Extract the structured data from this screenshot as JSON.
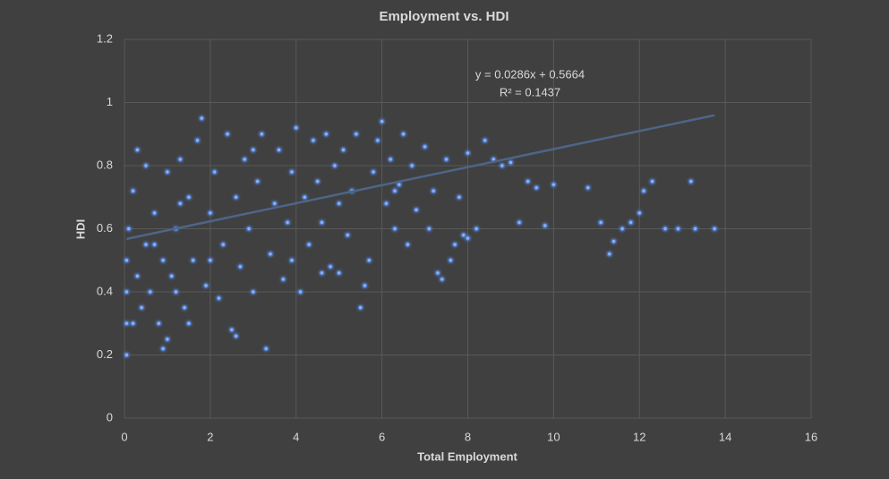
{
  "chart_data": {
    "type": "scatter",
    "title": "Employment vs. HDI",
    "x_label": "Total Employment",
    "y_label": "HDI",
    "xlim": [
      0,
      16
    ],
    "xticks": [
      0,
      2,
      4,
      6,
      8,
      10,
      12,
      14,
      16
    ],
    "ylim": [
      0,
      1.2
    ],
    "yticks": [
      0,
      0.2,
      0.4,
      0.6,
      0.8,
      1,
      1.2
    ],
    "grid": true,
    "color": "#8eb1f0",
    "edge_color": "#4472c4",
    "trendline": {
      "slope": 0.0286,
      "intercept": 0.5664,
      "color": "#4d6588"
    },
    "annotations": [
      "y = 0.0286x + 0.5664",
      "R² = 0.1437"
    ],
    "x": [
      0.05,
      0.05,
      0.05,
      0.05,
      0.1,
      0.2,
      0.3,
      0.3,
      0.4,
      0.5,
      0.5,
      0.6,
      0.7,
      0.8,
      0.9,
      0.9,
      1.0,
      1.1,
      1.2,
      1.3,
      1.4,
      1.5,
      1.6,
      1.7,
      1.8,
      1.9,
      2.0,
      2.1,
      2.2,
      2.3,
      2.4,
      2.5,
      2.6,
      2.7,
      2.8,
      2.9,
      3.0,
      3.1,
      3.2,
      3.3,
      3.4,
      3.5,
      3.6,
      3.7,
      3.8,
      3.9,
      4.0,
      4.1,
      4.2,
      4.3,
      4.4,
      4.5,
      4.6,
      4.7,
      4.8,
      4.9,
      5.0,
      5.1,
      5.2,
      5.3,
      5.4,
      5.5,
      5.6,
      5.7,
      5.8,
      5.9,
      6.0,
      6.1,
      6.2,
      6.3,
      6.4,
      6.5,
      6.6,
      6.7,
      6.8,
      7.0,
      7.1,
      7.2,
      7.3,
      7.4,
      7.5,
      7.6,
      7.7,
      7.8,
      7.9,
      8.0,
      8.2,
      8.4,
      8.6,
      8.8,
      9.0,
      9.2,
      9.4,
      9.6,
      9.8,
      10.0,
      10.8,
      11.1,
      11.3,
      11.4,
      11.6,
      11.8,
      12.0,
      12.1,
      12.3,
      12.6,
      12.9,
      13.2,
      13.3,
      13.75,
      8.0,
      1.0,
      0.2,
      1.5,
      2.6,
      4.6,
      5.0,
      3.9,
      6.3,
      0.7,
      1.2,
      2.0,
      3.0,
      1.3
    ],
    "y": [
      0.2,
      0.3,
      0.4,
      0.5,
      0.6,
      0.72,
      0.85,
      0.45,
      0.35,
      0.55,
      0.8,
      0.4,
      0.65,
      0.3,
      0.22,
      0.5,
      0.78,
      0.45,
      0.6,
      0.82,
      0.35,
      0.7,
      0.5,
      0.88,
      0.95,
      0.42,
      0.65,
      0.78,
      0.38,
      0.55,
      0.9,
      0.28,
      0.7,
      0.48,
      0.82,
      0.6,
      0.4,
      0.75,
      0.9,
      0.22,
      0.52,
      0.68,
      0.85,
      0.44,
      0.62,
      0.78,
      0.92,
      0.4,
      0.7,
      0.55,
      0.88,
      0.75,
      0.62,
      0.9,
      0.48,
      0.8,
      0.68,
      0.85,
      0.58,
      0.72,
      0.9,
      0.35,
      0.42,
      0.5,
      0.78,
      0.88,
      0.94,
      0.68,
      0.82,
      0.6,
      0.74,
      0.9,
      0.55,
      0.8,
      0.66,
      0.86,
      0.6,
      0.72,
      0.46,
      0.44,
      0.82,
      0.5,
      0.55,
      0.7,
      0.58,
      0.84,
      0.6,
      0.88,
      0.82,
      0.8,
      0.81,
      0.62,
      0.75,
      0.73,
      0.61,
      0.74,
      0.73,
      0.62,
      0.52,
      0.56,
      0.6,
      0.62,
      0.65,
      0.72,
      0.75,
      0.6,
      0.6,
      0.75,
      0.6,
      0.6,
      0.57,
      0.25,
      0.3,
      0.3,
      0.26,
      0.46,
      0.46,
      0.5,
      0.72,
      0.55,
      0.4,
      0.5,
      0.85,
      0.68
    ]
  }
}
